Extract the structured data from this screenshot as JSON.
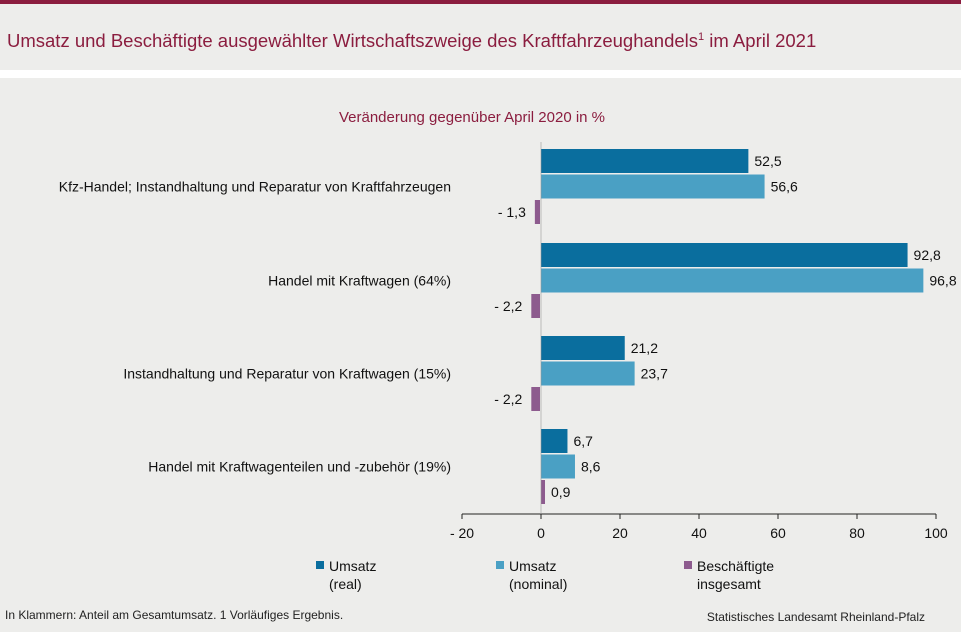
{
  "title": {
    "main": "Umsatz und  Beschäftigte ausgewählter Wirtschaftszweige des Kraftfahrzeughandels",
    "sup": "1",
    "tail": " im April 2021"
  },
  "chart_data": {
    "type": "bar",
    "orientation": "horizontal",
    "subtitle": "Veränderung  gegenüber  April 2020 in %",
    "categories": [
      "Kfz-Handel; Instandhaltung und Reparatur von Kraftfahrzeugen",
      "Handel mit Kraftwagen (64%)",
      "Instandhaltung und Reparatur von Kraftwagen (15%)",
      "Handel mit Kraftwagenteilen und -zubehör (19%)"
    ],
    "series": [
      {
        "name": "Umsatz (real)",
        "legend_lines": [
          "Umsatz",
          "(real)"
        ],
        "color": "#0a6e9e",
        "values": [
          52.5,
          92.8,
          21.2,
          6.7
        ],
        "labels": [
          "52,5",
          "92,8",
          "21,2",
          "6,7"
        ]
      },
      {
        "name": "Umsatz (nominal)",
        "legend_lines": [
          "Umsatz",
          "(nominal)"
        ],
        "color": "#4aa0c4",
        "values": [
          56.6,
          96.8,
          23.7,
          8.6
        ],
        "labels": [
          "56,6",
          "96,8",
          "23,7",
          "8,6"
        ]
      },
      {
        "name": "Beschäftigte insgesamt",
        "legend_lines": [
          "Beschäftigte",
          "insgesamt"
        ],
        "color": "#8d5b8e",
        "values": [
          -1.3,
          -2.2,
          -2.2,
          0.9
        ],
        "labels": [
          "- 1,3",
          "- 2,2",
          "- 2,2",
          "0,9"
        ]
      }
    ],
    "x_ticks": [
      {
        "value": -20,
        "label": "- 20"
      },
      {
        "value": 0,
        "label": "0"
      },
      {
        "value": 20,
        "label": "20"
      },
      {
        "value": 40,
        "label": "40"
      },
      {
        "value": 60,
        "label": "60"
      },
      {
        "value": 80,
        "label": "80"
      },
      {
        "value": 100,
        "label": "100"
      }
    ],
    "xlim": [
      -20,
      100
    ],
    "grid": false,
    "legend_position": "bottom"
  },
  "footnote": "In Klammern:  Anteil am Gesamtumsatz.  1 Vorläufiges  Ergebnis.",
  "source": "Statistisches Landesamt  Rheinland-Pfalz"
}
